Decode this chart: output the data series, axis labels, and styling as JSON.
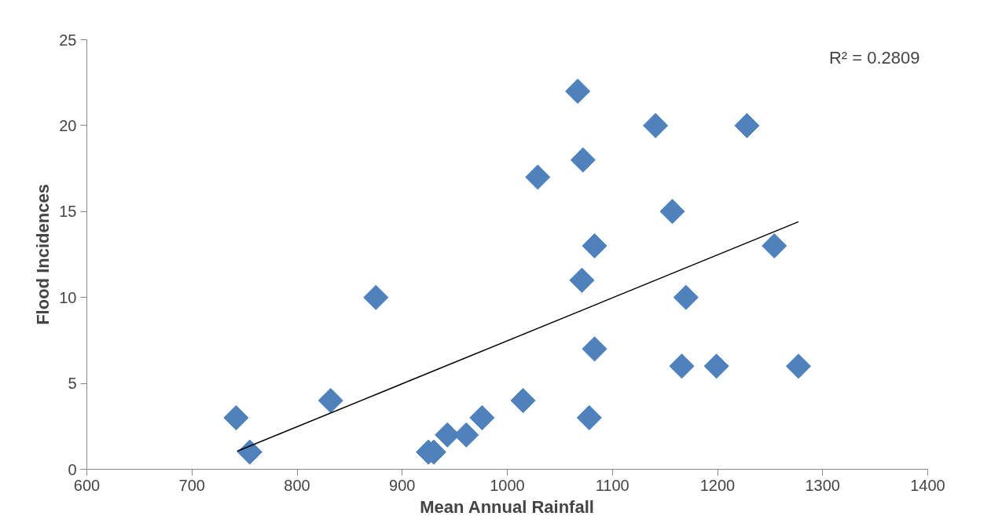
{
  "chart_data": {
    "type": "scatter",
    "xlabel": "Mean Annual Rainfall",
    "ylabel": "Flood Incidences",
    "annotations": [
      "R² = 0.2809"
    ],
    "series": [
      {
        "marker": "diamond",
        "color": "#4f81bd",
        "x": [
          742,
          755,
          832,
          875,
          925,
          930,
          943,
          961,
          976,
          1015,
          1029,
          1067,
          1072,
          1071,
          1083,
          1078,
          1083,
          1141,
          1157,
          1170,
          1166,
          1199,
          1228,
          1254,
          1277
        ],
        "values": [
          3,
          1,
          4,
          10,
          1,
          1,
          2,
          2,
          3,
          4,
          17,
          22,
          18,
          11,
          13,
          3,
          7,
          20,
          15,
          10,
          6,
          6,
          20,
          13,
          6
        ]
      },
      {
        "type": "line",
        "marker": "none",
        "color": "#000000",
        "x": [
          743,
          1277
        ],
        "values": [
          1.05,
          14.4
        ]
      }
    ],
    "grid": false,
    "xlim": [
      600,
      1400
    ],
    "xticks": [
      600,
      700,
      800,
      900,
      1000,
      1100,
      1200,
      1300,
      1400
    ],
    "ylim": [
      0,
      25
    ],
    "yticks": [
      0,
      5,
      10,
      15,
      20,
      25
    ]
  }
}
